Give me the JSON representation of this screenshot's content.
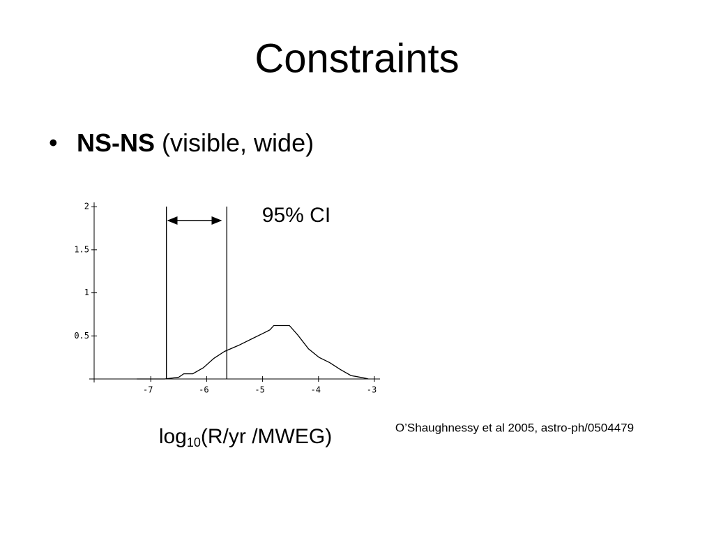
{
  "title": "Constraints",
  "bullet": {
    "bold": "NS-NS",
    "rest": "(visible, wide)"
  },
  "source": "O’Shaughnessy et al 2005, astro-ph/0504479",
  "chart_data": {
    "type": "line",
    "x": [
      -7.25,
      -6.75,
      -6.5,
      -6.41,
      -6.25,
      -6.06,
      -5.87,
      -5.68,
      -5.43,
      -5.18,
      -4.99,
      -4.87,
      -4.8,
      -4.68,
      -4.52,
      -4.37,
      -4.18,
      -3.99,
      -3.8,
      -3.61,
      -3.42,
      -3.17,
      -3.11
    ],
    "values": [
      0,
      0,
      0.02,
      0.06,
      0.06,
      0.13,
      0.24,
      0.32,
      0.39,
      0.47,
      0.53,
      0.57,
      0.62,
      0.62,
      0.62,
      0.51,
      0.35,
      0.25,
      0.19,
      0.11,
      0.04,
      0.01,
      0
    ],
    "color": "#000000",
    "xlim": [
      -8.1,
      -2.9
    ],
    "xticks": [
      -7,
      -6,
      -5,
      -4,
      -3
    ],
    "ylim": [
      0,
      2.05
    ],
    "yticks": [
      0.5,
      1,
      1.5,
      2
    ],
    "ci_bounds": [
      -6.72,
      -5.64
    ],
    "annotation": "95% CI",
    "xlabel": {
      "base": "log",
      "subscript": "10",
      "rest": "(R/yr /MWEG)"
    }
  }
}
